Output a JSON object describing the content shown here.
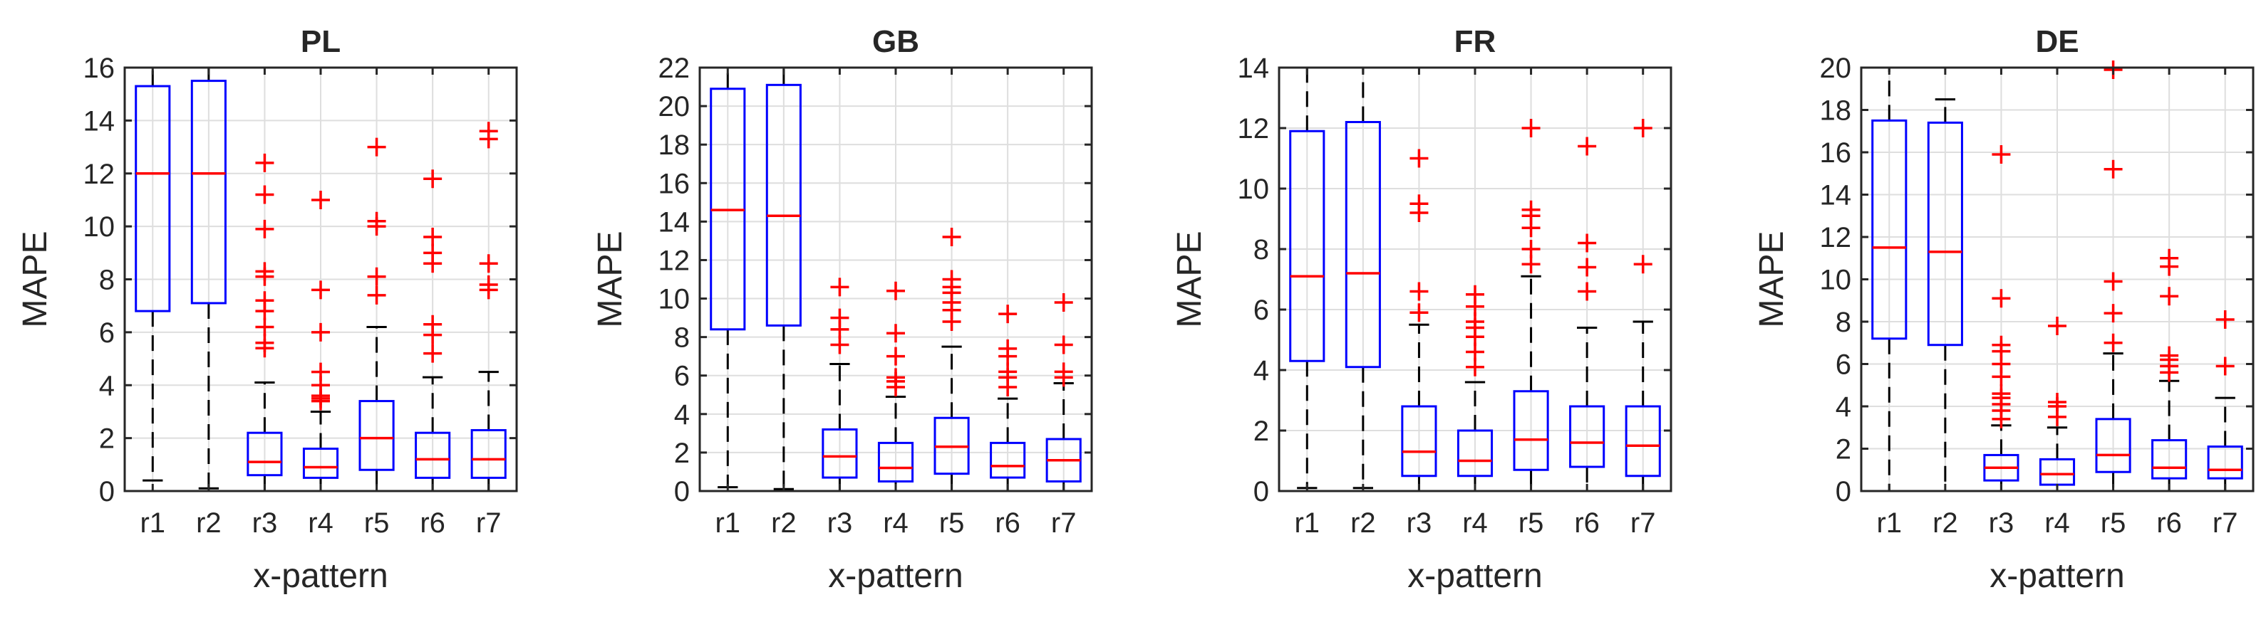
{
  "chart_data": [
    {
      "type": "box",
      "title": "PL",
      "xlabel": "x-pattern",
      "ylabel": "MAPE",
      "ylim": [
        0,
        16
      ],
      "yticks": [
        0,
        2,
        4,
        6,
        8,
        10,
        12,
        14,
        16
      ],
      "grid": true,
      "categories": [
        "r1",
        "r2",
        "r3",
        "r4",
        "r5",
        "r6",
        "r7"
      ],
      "boxes": [
        {
          "q1": 6.8,
          "median": 12.0,
          "q3": 15.3,
          "whisker_low": 0.4,
          "whisker_high": 16.0,
          "outliers": []
        },
        {
          "q1": 7.1,
          "median": 12.0,
          "q3": 15.5,
          "whisker_low": 0.1,
          "whisker_high": 16.0,
          "outliers": []
        },
        {
          "q1": 0.6,
          "median": 1.1,
          "q3": 2.2,
          "whisker_low": 0.0,
          "whisker_high": 4.1,
          "outliers": [
            5.4,
            5.6,
            6.2,
            6.8,
            7.2,
            8.1,
            8.3,
            9.9,
            11.2,
            12.4
          ]
        },
        {
          "q1": 0.5,
          "median": 0.9,
          "q3": 1.6,
          "whisker_low": 0.0,
          "whisker_high": 3.0,
          "outliers": [
            3.4,
            3.5,
            3.6,
            4.0,
            4.5,
            6.0,
            7.6,
            11.0
          ]
        },
        {
          "q1": 0.8,
          "median": 2.0,
          "q3": 3.4,
          "whisker_low": 0.0,
          "whisker_high": 6.2,
          "outliers": [
            7.4,
            8.1,
            10.0,
            10.2,
            13.0
          ]
        },
        {
          "q1": 0.5,
          "median": 1.2,
          "q3": 2.2,
          "whisker_low": 0.0,
          "whisker_high": 4.3,
          "outliers": [
            5.2,
            5.9,
            6.3,
            8.6,
            9.0,
            9.6,
            11.8
          ]
        },
        {
          "q1": 0.5,
          "median": 1.2,
          "q3": 2.3,
          "whisker_low": 0.0,
          "whisker_high": 4.5,
          "outliers": [
            7.6,
            7.8,
            8.6,
            13.3,
            13.6
          ]
        }
      ]
    },
    {
      "type": "box",
      "title": "GB",
      "xlabel": "x-pattern",
      "ylabel": "MAPE",
      "ylim": [
        0,
        22
      ],
      "yticks": [
        0,
        2,
        4,
        6,
        8,
        10,
        12,
        14,
        16,
        18,
        20,
        22
      ],
      "grid": true,
      "categories": [
        "r1",
        "r2",
        "r3",
        "r4",
        "r5",
        "r6",
        "r7"
      ],
      "boxes": [
        {
          "q1": 8.4,
          "median": 14.6,
          "q3": 20.9,
          "whisker_low": 0.2,
          "whisker_high": 22.0,
          "outliers": []
        },
        {
          "q1": 8.6,
          "median": 14.3,
          "q3": 21.1,
          "whisker_low": 0.1,
          "whisker_high": 22.0,
          "outliers": []
        },
        {
          "q1": 0.7,
          "median": 1.8,
          "q3": 3.2,
          "whisker_low": 0.0,
          "whisker_high": 6.6,
          "outliers": [
            7.6,
            8.4,
            9.0,
            10.6
          ]
        },
        {
          "q1": 0.5,
          "median": 1.2,
          "q3": 2.5,
          "whisker_low": 0.0,
          "whisker_high": 4.9,
          "outliers": [
            5.4,
            5.7,
            5.9,
            7.0,
            8.2,
            10.4
          ]
        },
        {
          "q1": 0.9,
          "median": 2.3,
          "q3": 3.8,
          "whisker_low": 0.0,
          "whisker_high": 7.5,
          "outliers": [
            8.8,
            9.4,
            9.8,
            10.3,
            10.6,
            11.0,
            13.2
          ]
        },
        {
          "q1": 0.7,
          "median": 1.3,
          "q3": 2.5,
          "whisker_low": 0.0,
          "whisker_high": 4.8,
          "outliers": [
            5.4,
            5.9,
            6.2,
            7.0,
            7.4,
            9.2
          ]
        },
        {
          "q1": 0.5,
          "median": 1.6,
          "q3": 2.7,
          "whisker_low": 0.0,
          "whisker_high": 5.6,
          "outliers": [
            5.9,
            6.2,
            7.6,
            9.8
          ]
        }
      ]
    },
    {
      "type": "box",
      "title": "FR",
      "xlabel": "x-pattern",
      "ylabel": "MAPE",
      "ylim": [
        0,
        14
      ],
      "yticks": [
        0,
        2,
        4,
        6,
        8,
        10,
        12,
        14
      ],
      "grid": true,
      "categories": [
        "r1",
        "r2",
        "r3",
        "r4",
        "r5",
        "r6",
        "r7"
      ],
      "boxes": [
        {
          "q1": 4.3,
          "median": 7.1,
          "q3": 11.9,
          "whisker_low": 0.1,
          "whisker_high": 14.0,
          "outliers": []
        },
        {
          "q1": 4.1,
          "median": 7.2,
          "q3": 12.2,
          "whisker_low": 0.1,
          "whisker_high": 14.0,
          "outliers": []
        },
        {
          "q1": 0.5,
          "median": 1.3,
          "q3": 2.8,
          "whisker_low": 0.0,
          "whisker_high": 5.5,
          "outliers": [
            5.9,
            6.6,
            9.2,
            9.5,
            11.0
          ]
        },
        {
          "q1": 0.5,
          "median": 1.0,
          "q3": 2.0,
          "whisker_low": 0.0,
          "whisker_high": 3.6,
          "outliers": [
            4.1,
            4.6,
            5.1,
            5.4,
            5.6,
            6.1,
            6.5
          ]
        },
        {
          "q1": 0.7,
          "median": 1.7,
          "q3": 3.3,
          "whisker_low": 0.0,
          "whisker_high": 7.1,
          "outliers": [
            7.5,
            8.0,
            8.7,
            9.1,
            9.3,
            12.0
          ]
        },
        {
          "q1": 0.8,
          "median": 1.6,
          "q3": 2.8,
          "whisker_low": 0.0,
          "whisker_high": 5.4,
          "outliers": [
            6.6,
            7.4,
            8.2,
            11.4
          ]
        },
        {
          "q1": 0.5,
          "median": 1.5,
          "q3": 2.8,
          "whisker_low": 0.0,
          "whisker_high": 5.6,
          "outliers": [
            7.5,
            12.0
          ]
        }
      ]
    },
    {
      "type": "box",
      "title": "DE",
      "xlabel": "x-pattern",
      "ylabel": "MAPE",
      "ylim": [
        0,
        20
      ],
      "yticks": [
        0,
        2,
        4,
        6,
        8,
        10,
        12,
        14,
        16,
        18,
        20
      ],
      "grid": true,
      "categories": [
        "r1",
        "r2",
        "r3",
        "r4",
        "r5",
        "r6",
        "r7"
      ],
      "boxes": [
        {
          "q1": 7.2,
          "median": 11.5,
          "q3": 17.5,
          "whisker_low": 0.0,
          "whisker_high": 20.0,
          "outliers": []
        },
        {
          "q1": 6.9,
          "median": 11.3,
          "q3": 17.4,
          "whisker_low": 0.0,
          "whisker_high": 18.5,
          "outliers": []
        },
        {
          "q1": 0.5,
          "median": 1.1,
          "q3": 1.7,
          "whisker_low": 0.0,
          "whisker_high": 3.1,
          "outliers": [
            3.4,
            3.8,
            4.1,
            4.4,
            4.6,
            5.4,
            6.0,
            6.6,
            6.9,
            9.1,
            15.9
          ]
        },
        {
          "q1": 0.3,
          "median": 0.8,
          "q3": 1.5,
          "whisker_low": 0.0,
          "whisker_high": 3.0,
          "outliers": [
            3.5,
            4.0,
            4.2,
            7.8
          ]
        },
        {
          "q1": 0.9,
          "median": 1.7,
          "q3": 3.4,
          "whisker_low": 0.0,
          "whisker_high": 6.5,
          "outliers": [
            7.0,
            8.4,
            9.9,
            15.2,
            19.9
          ]
        },
        {
          "q1": 0.6,
          "median": 1.1,
          "q3": 2.4,
          "whisker_low": 0.0,
          "whisker_high": 5.2,
          "outliers": [
            5.6,
            5.9,
            6.2,
            6.4,
            9.2,
            10.6,
            11.0
          ]
        },
        {
          "q1": 0.6,
          "median": 1.0,
          "q3": 2.1,
          "whisker_low": 0.0,
          "whisker_high": 4.4,
          "outliers": [
            5.9,
            8.1
          ]
        }
      ]
    }
  ],
  "colors": {
    "box": "#0000ff",
    "median": "#ff0000",
    "outlier": "#ff0000",
    "whisker": "#000000",
    "grid": "#dedede",
    "axis": "#262626"
  }
}
